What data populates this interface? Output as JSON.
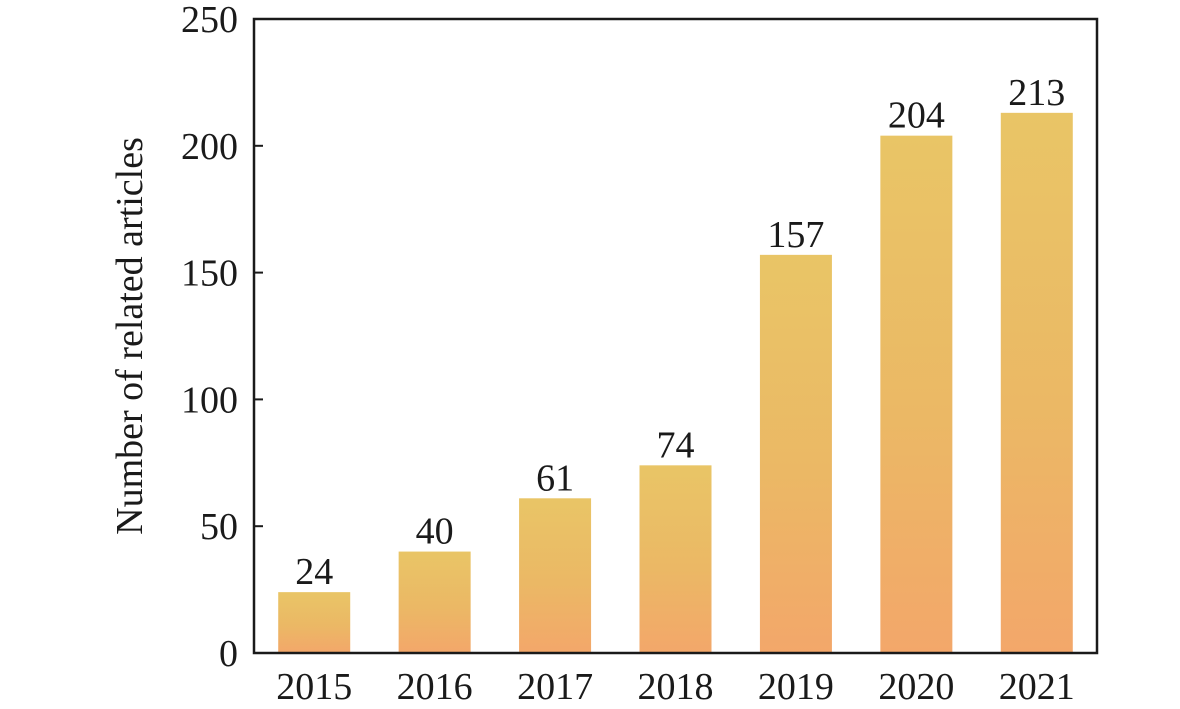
{
  "chart_data": {
    "type": "bar",
    "title": "",
    "xlabel": "",
    "ylabel": "Number of related articles",
    "categories": [
      "2015",
      "2016",
      "2017",
      "2018",
      "2019",
      "2020",
      "2021"
    ],
    "values": [
      24,
      40,
      61,
      74,
      157,
      204,
      213
    ],
    "value_labels": [
      "24",
      "40",
      "61",
      "74",
      "157",
      "204",
      "213"
    ],
    "ylim": [
      0,
      250
    ],
    "yticks": [
      0,
      50,
      100,
      150,
      200,
      250
    ],
    "ytick_labels": [
      "0",
      "50",
      "100",
      "150",
      "200",
      "250"
    ],
    "grid": false,
    "legend": "none",
    "colors": {
      "bar_top": "#e9c566",
      "bar_bottom": "#f3a76a",
      "axis": "#1a1a1a"
    }
  }
}
